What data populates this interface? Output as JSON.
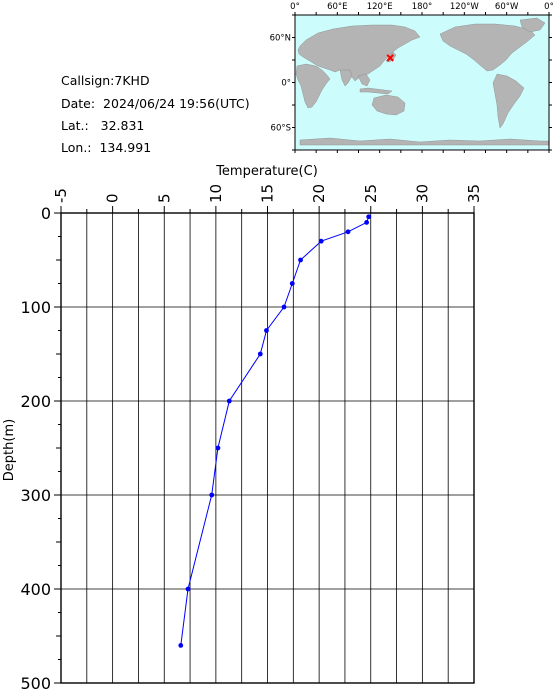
{
  "info": {
    "callsign_label": "Callsign:",
    "callsign": "7KHD",
    "date_label": "Date:",
    "date": "2024/06/24 19:56(UTC)",
    "lat_label": "Lat.:",
    "lat": "32.831",
    "lon_label": "Lon.:",
    "lon": "134.991"
  },
  "map": {
    "top_ticks": [
      "0°",
      "60°E",
      "120°E",
      "180°",
      "120°W",
      "60°W",
      "0°"
    ],
    "left_ticks": [
      "60°N",
      "0°",
      "60°S"
    ],
    "ocean_color": "#cdfcfc",
    "land_color": "#b4b4b4",
    "marker_color": "#ff0000",
    "marker_lat": 32.831,
    "marker_lon": 134.991
  },
  "chart_data": {
    "type": "line",
    "xlabel": "Temperature(C)",
    "ylabel": "Depth(m)",
    "xlim": [
      -5,
      35
    ],
    "ylim": [
      500,
      0
    ],
    "x_ticks": [
      "-5",
      "0",
      "5",
      "10",
      "15",
      "20",
      "25",
      "30",
      "35"
    ],
    "y_ticks": [
      "0",
      "100",
      "200",
      "300",
      "400",
      "500"
    ],
    "grid": true,
    "line_color": "#0000ff",
    "series": [
      {
        "depth": [
          4,
          10,
          20,
          30,
          50,
          75,
          100,
          125,
          150,
          200,
          250,
          300,
          400,
          460
        ],
        "temperature": [
          24.8,
          24.6,
          22.8,
          20.2,
          18.2,
          17.4,
          16.6,
          14.9,
          14.3,
          11.3,
          10.2,
          9.6,
          7.3,
          6.6
        ]
      }
    ]
  }
}
